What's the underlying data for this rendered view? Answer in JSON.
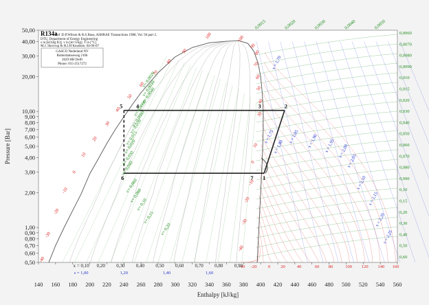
{
  "chart_data": {
    "type": "line",
    "title": "R134a",
    "header_lines": [
      "Ref :D.P.Wilson & R.S.Basu, ASHRAE Transactions 1988, Vol. 94 part 2.",
      "DTU, Department of Energy Engineering",
      "s in [kJ/(kg K)]. v in [m^3/kg]. T in [°C]",
      "M.J. Skovrup & H.J.H Knudsen. 04-06-07"
    ],
    "box_lines": [
      "GASCO Nederland NV",
      "Rotterdamseweg 210b",
      "2629 HH Delft",
      "Phone: 015-2517272"
    ],
    "xlabel": "Enthalpy [kJ/kg]",
    "ylabel": "Pressure [Bar]",
    "x_ticks": [
      "140",
      "160",
      "180",
      "200",
      "220",
      "240",
      "260",
      "280",
      "300",
      "320",
      "340",
      "360",
      "380",
      "400",
      "420",
      "440",
      "460",
      "480",
      "500",
      "520",
      "540",
      "560"
    ],
    "y_ticks": [
      "0,50",
      "0,60",
      "0,70",
      "0,80",
      "0,90",
      "1,00",
      "2,00",
      "3,00",
      "4,00",
      "5,00",
      "6,00",
      "7,00",
      "8,00",
      "9,00",
      "10,00",
      "20,00",
      "30,00",
      "40,00",
      "50,00"
    ],
    "xlim": [
      140,
      560
    ],
    "ylim": [
      0.5,
      50
    ],
    "y_scale": "log",
    "quality_labels": [
      "x = 0,10",
      "0,20",
      "0,30",
      "0,40",
      "0,50",
      "0,60",
      "0,70",
      "0,80",
      "0,90"
    ],
    "entropy_bottom_labels": [
      "s = 1,00",
      "1,20",
      "1,40",
      "1,60"
    ],
    "saturation_dome": {
      "liquid": [
        [
          152,
          0.5
        ],
        [
          160,
          0.7
        ],
        [
          170,
          1.0
        ],
        [
          180,
          1.4
        ],
        [
          190,
          1.95
        ],
        [
          200,
          2.9
        ],
        [
          210,
          3.9
        ],
        [
          220,
          5.3
        ],
        [
          230,
          7.0
        ],
        [
          240,
          9.0
        ],
        [
          250,
          11.5
        ],
        [
          260,
          14.5
        ],
        [
          280,
          21.5
        ],
        [
          300,
          29.5
        ],
        [
          320,
          35.5
        ],
        [
          340,
          39.0
        ],
        [
          360,
          40.2
        ],
        [
          375,
          40.6
        ]
      ],
      "vapor": [
        [
          375,
          40.6
        ],
        [
          385,
          38.5
        ],
        [
          392,
          33.0
        ],
        [
          397,
          26.0
        ],
        [
          400,
          20.0
        ],
        [
          402,
          14.0
        ],
        [
          403,
          10.0
        ],
        [
          403,
          7.0
        ],
        [
          402,
          4.0
        ],
        [
          400,
          2.0
        ],
        [
          398,
          1.0
        ],
        [
          396,
          0.5
        ]
      ]
    },
    "isotherm_labels": [
      {
        "t": "-40",
        "h": 145,
        "p": 0.52
      },
      {
        "t": "-30",
        "h": 152,
        "p": 0.85
      },
      {
        "t": "-20",
        "h": 162,
        "p": 1.35
      },
      {
        "t": "-10",
        "h": 172,
        "p": 2.05
      },
      {
        "t": "0",
        "h": 183,
        "p": 2.95
      },
      {
        "t": "10",
        "h": 194,
        "p": 4.15
      },
      {
        "t": "20",
        "h": 207,
        "p": 5.7
      },
      {
        "t": "30",
        "h": 222,
        "p": 7.7
      },
      {
        "t": "40",
        "h": 234,
        "p": 10.2
      },
      {
        "t": "50",
        "h": 248,
        "p": 13.2
      },
      {
        "t": "60",
        "h": 262,
        "p": 16.8
      },
      {
        "t": "70",
        "h": 278,
        "p": 21.2
      },
      {
        "t": "80",
        "h": 294,
        "p": 26.5
      },
      {
        "t": "90",
        "h": 312,
        "p": 32.5
      },
      {
        "t": "100",
        "h": 340,
        "p": 44.0
      },
      {
        "t": "100",
        "h": 378,
        "p": 41.5
      },
      {
        "t": "90",
        "h": 392,
        "p": 36.0
      },
      {
        "t": "80",
        "h": 397,
        "p": 31.5
      },
      {
        "t": "70",
        "h": 396,
        "p": 25.0
      },
      {
        "t": "60",
        "h": 398,
        "p": 19.5
      },
      {
        "t": "50",
        "h": 399,
        "p": 15.5
      },
      {
        "t": "40",
        "h": 401,
        "p": 12.0
      },
      {
        "t": "30",
        "h": 400,
        "p": 9.3
      },
      {
        "t": "10",
        "h": 395,
        "p": 5.0
      },
      {
        "t": "0",
        "h": 392,
        "p": 3.6
      },
      {
        "t": "-10",
        "h": 390,
        "p": 2.4
      },
      {
        "t": "-20",
        "h": 385,
        "p": 1.7
      },
      {
        "t": "-30",
        "h": 382,
        "p": 1.1
      },
      {
        "t": "-40",
        "h": 378,
        "p": 0.65
      },
      {
        "t": "-40",
        "h": 378,
        "p": 0.49
      },
      {
        "t": "-20",
        "h": 392,
        "p": 0.49
      },
      {
        "t": "0",
        "h": 410,
        "p": 0.49
      },
      {
        "t": "20",
        "h": 426,
        "p": 0.49
      },
      {
        "t": "40",
        "h": 445,
        "p": 0.49
      },
      {
        "t": "60",
        "h": 466,
        "p": 0.49
      },
      {
        "t": "80",
        "h": 482,
        "p": 0.49
      },
      {
        "t": "100",
        "h": 503,
        "p": 0.49
      },
      {
        "t": "120",
        "h": 522,
        "p": 0.49
      },
      {
        "t": "140",
        "h": 541,
        "p": 0.49
      },
      {
        "t": "160",
        "h": 558,
        "p": 0.49
      }
    ],
    "volume_labels_in_dome": [
      {
        "v": "v= 0,0020",
        "h": 270,
        "p": 18.5
      },
      {
        "v": "v= 0,0030",
        "h": 270,
        "p": 15.5
      },
      {
        "v": "v= 0,0040",
        "h": 270,
        "p": 13.5
      },
      {
        "v": "v= 0,0060",
        "h": 260,
        "p": 10.5
      },
      {
        "v": "v= 0,0080",
        "h": 258,
        "p": 8.5
      },
      {
        "v": "v= 0,010",
        "h": 255,
        "p": 7.3
      },
      {
        "v": "v= 0,015",
        "h": 250,
        "p": 5.8
      },
      {
        "v": "v= 0,020",
        "h": 248,
        "p": 4.9
      },
      {
        "v": "v= 0,030",
        "h": 246,
        "p": 3.9
      },
      {
        "v": "v= 0,040",
        "h": 245,
        "p": 3.2
      },
      {
        "v": "v= 0,060",
        "h": 250,
        "p": 2.25
      },
      {
        "v": "v= 0,080",
        "h": 255,
        "p": 1.85
      },
      {
        "v": "v= 0,10",
        "h": 262,
        "p": 1.55
      },
      {
        "v": "v= 0,15",
        "h": 270,
        "p": 1.2
      },
      {
        "v": "v= 0,20",
        "h": 290,
        "p": 0.95
      }
    ],
    "volume_labels_right": [
      "0,0060",
      "0,0070",
      "0,0080",
      "0,0090",
      "0,010",
      "0,015",
      "0,020",
      "0,030",
      "0,040",
      "0,050",
      "0,060",
      "0,070",
      "0,080",
      "0,090",
      "0,10",
      "0,15",
      "0,20",
      "0,30",
      "0,40",
      "0,50",
      "0,60"
    ],
    "volume_labels_top": [
      "0,0015",
      "0,0020",
      "0,0030",
      "0,0040",
      "0,0050"
    ],
    "entropy_labels_right": [
      {
        "s": "s = 1,70",
        "h": 420,
        "p": 26.0
      },
      {
        "s": "s = 1,75",
        "h": 411,
        "p": 6.0
      },
      {
        "s": "s = 1,80",
        "h": 422,
        "p": 4.9
      },
      {
        "s": "s = 1,85",
        "h": 440,
        "p": 6.0
      },
      {
        "s": "s = 1,90",
        "h": 462,
        "p": 5.5
      },
      {
        "s": "s = 1,95",
        "h": 482,
        "p": 5.0
      },
      {
        "s": "s = 2,00",
        "h": 498,
        "p": 4.5
      },
      {
        "s": "s = 2,05",
        "h": 508,
        "p": 3.7
      },
      {
        "s": "s = 2,10",
        "h": 519,
        "p": 2.4
      },
      {
        "s": "s = 2,15",
        "h": 533,
        "p": 1.75
      },
      {
        "s": "s = 2,20",
        "h": 541,
        "p": 1.15
      },
      {
        "s": "s = 2,25",
        "h": 550,
        "p": 0.82
      }
    ],
    "cycle_points": [
      {
        "label": "1",
        "h": 404,
        "p": 2.93
      },
      {
        "label": "2",
        "h": 428,
        "p": 10.2
      },
      {
        "label": "3",
        "h": 402,
        "p": 10.2
      },
      {
        "label": "4",
        "h": 256,
        "p": 10.2
      },
      {
        "label": "5",
        "h": 240,
        "p": 10.2
      },
      {
        "label": "6",
        "h": 240,
        "p": 2.93
      },
      {
        "label": "7",
        "h": 393,
        "p": 2.93
      }
    ]
  },
  "colors": {
    "isotherm": "#e04a4a",
    "isochore": "#3a9a3a",
    "isentrope": "#4455dd",
    "quality": "#999999",
    "cycle": "#222222",
    "text_red": "#d22222",
    "text_green": "#1a8a1a",
    "text_blue": "#2233cc"
  }
}
